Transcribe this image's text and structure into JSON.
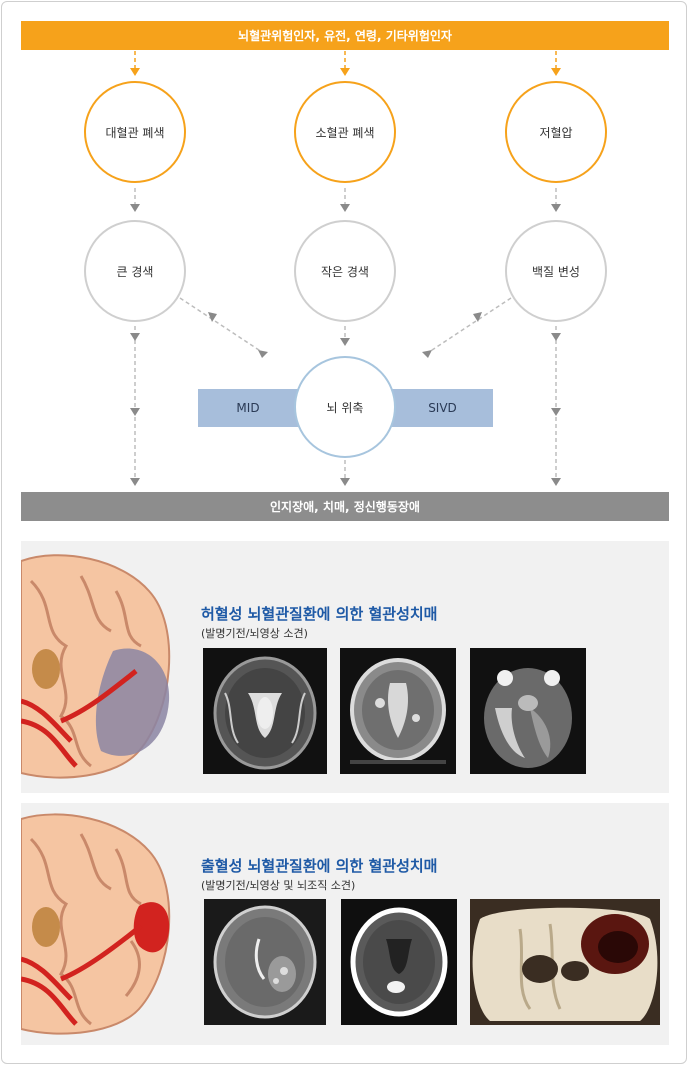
{
  "top_bar": "뇌혈관위험인자, 유전, 연령, 기타위험인자",
  "row1": [
    "대혈관 폐색",
    "소혈관 폐색",
    "저혈압"
  ],
  "row2": [
    "큰 경색",
    "작은 경색",
    "백질 변성"
  ],
  "center": "뇌 위축",
  "band_left": "MID",
  "band_right": "SIVD",
  "bottom_bar": "인지장애, 치매, 정신행동장애",
  "panel1": {
    "title": "허혈성 뇌혈관질환에 의한 혈관성치매",
    "subtitle": "(발명기전/뇌영상 소견)"
  },
  "panel2": {
    "title": "출혈성 뇌혈관질환에 의한 혈관성치매",
    "subtitle": "(발명기전/뇌영상 및 뇌조직 소견)"
  },
  "colors": {
    "orange": "#f6a21b",
    "gray": "#8d8d8d",
    "blue_band": "#a7bedb",
    "title_blue": "#1f5aa6"
  }
}
